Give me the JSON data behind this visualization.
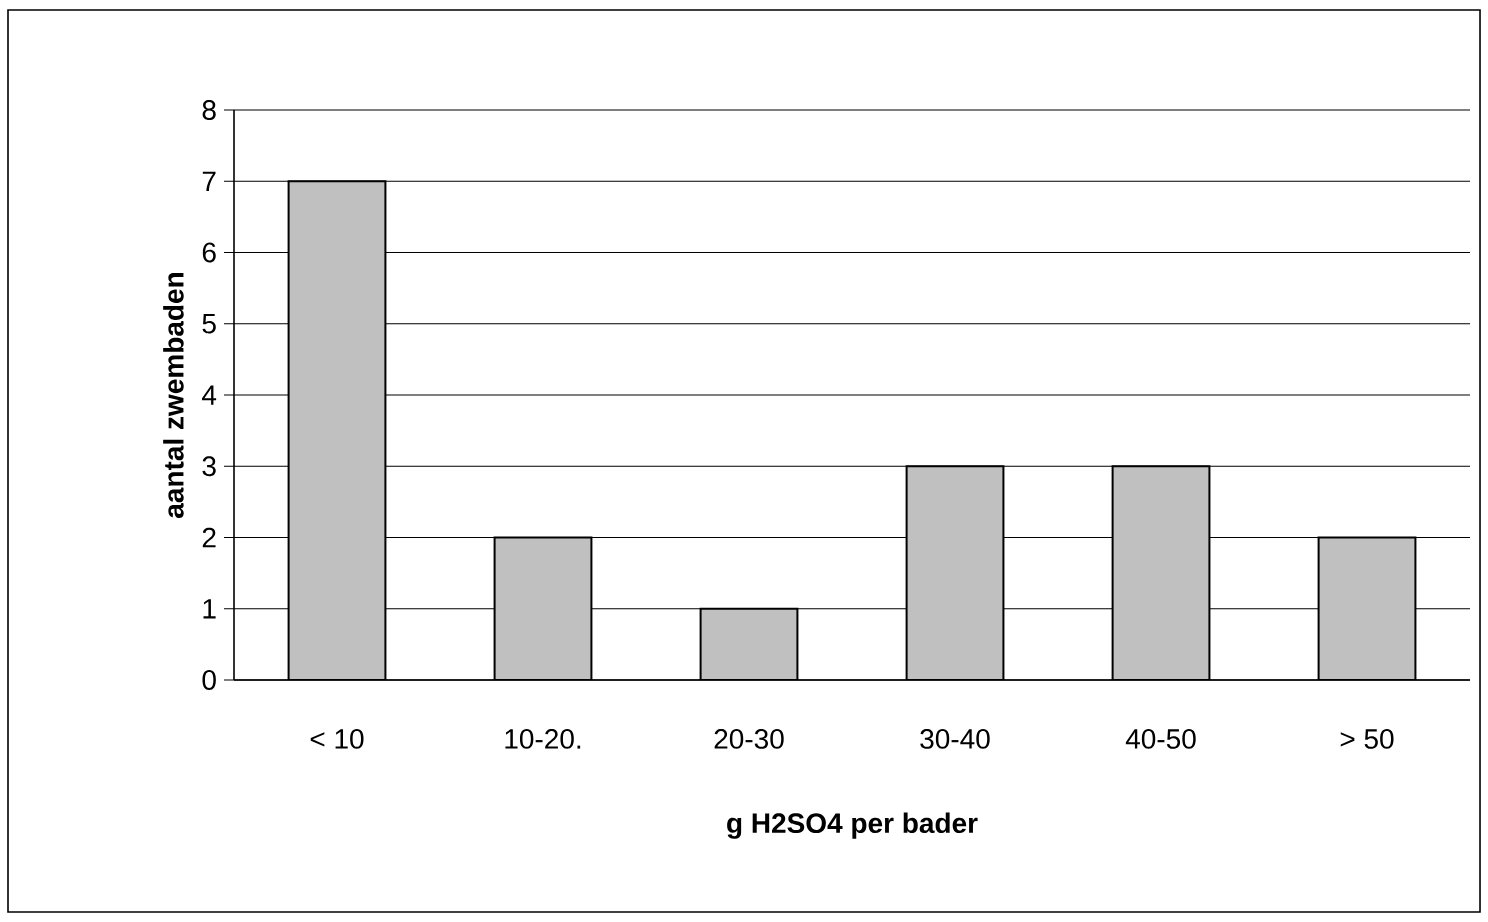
{
  "chart_data": {
    "type": "bar",
    "xlabel": "g H2SO4 per bader",
    "ylabel": "aantal zwembaden",
    "categories": [
      "< 10",
      "10-20.",
      "20-30",
      "30-40",
      "40-50",
      "> 50"
    ],
    "values": [
      7,
      2,
      1,
      3,
      3,
      2
    ],
    "color": "#c0c0c0",
    "ylim": [
      0,
      8
    ],
    "yticks": [
      0,
      1,
      2,
      3,
      4,
      5,
      6,
      7,
      8
    ],
    "grid": "y"
  }
}
